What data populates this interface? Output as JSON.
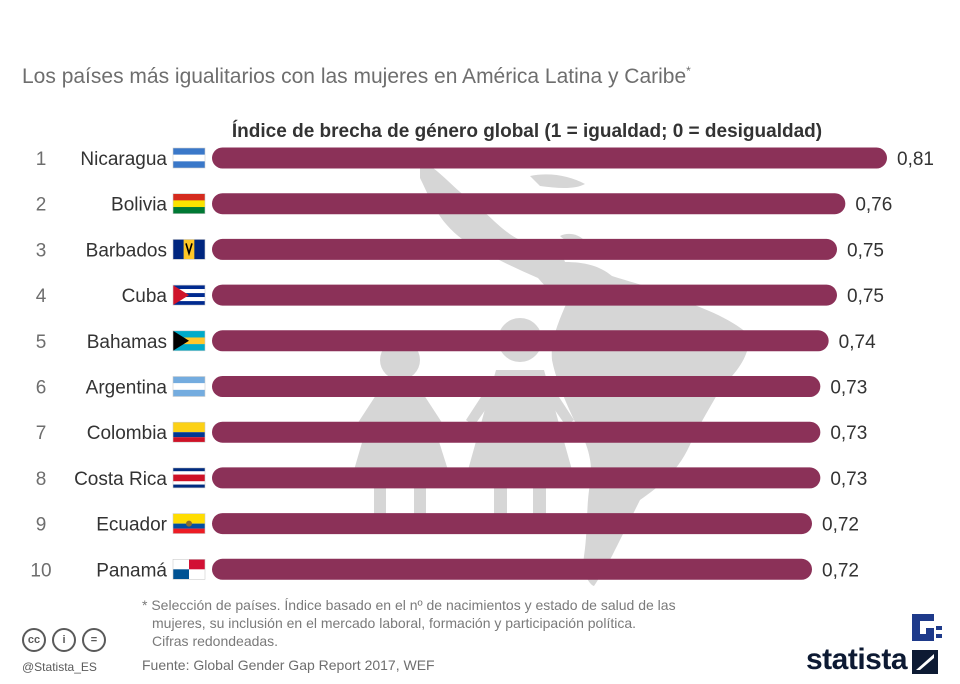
{
  "title": "Los países más igualitarios con las mujeres en América Latina y Caribe",
  "title_marker": "*",
  "chart_data": {
    "type": "bar",
    "orientation": "horizontal",
    "title": "Índice de brecha de género global (1 = igualdad; 0 = desigualdad)",
    "ranks": [
      "1",
      "2",
      "3",
      "4",
      "5",
      "6",
      "7",
      "8",
      "9",
      "10"
    ],
    "categories": [
      "Nicaragua",
      "Bolivia",
      "Barbados",
      "Cuba",
      "Bahamas",
      "Argentina",
      "Colombia",
      "Costa Rica",
      "Ecuador",
      "Panamá"
    ],
    "values": [
      0.81,
      0.76,
      0.75,
      0.75,
      0.74,
      0.73,
      0.73,
      0.73,
      0.72,
      0.72
    ],
    "value_labels": [
      "0,81",
      "0,76",
      "0,75",
      "0,75",
      "0,74",
      "0,73",
      "0,73",
      "0,73",
      "0,72",
      "0,72"
    ],
    "flags": [
      "nicaragua-flag",
      "bolivia-flag",
      "barbados-flag",
      "cuba-flag",
      "bahamas-flag",
      "argentina-flag",
      "colombia-flag",
      "costa-rica-flag",
      "ecuador-flag",
      "panama-flag"
    ],
    "xlim": [
      0,
      1
    ],
    "bar_color": "#8b3158",
    "grid": false
  },
  "footnote": {
    "line1": "* Selección de países. Índice basado en el nº de nacimientos y estado de salud de las",
    "line2": "mujeres, su inclusión en el mercado laboral, formación y participación política.",
    "line3": "Cifras redondeadas."
  },
  "source": "Fuente: Global Gender Gap Report 2017, WEF",
  "handle": "@Statista_ES",
  "cc_icons": [
    "creative-commons-icon",
    "attribution-icon",
    "no-derivatives-icon"
  ],
  "cc_glyphs": [
    "cc",
    "i",
    "="
  ],
  "brand": "statista",
  "colors": {
    "bar": "#8b3158",
    "map": "#d9d9d9",
    "brand": "#0d1a33",
    "brand_accent": "#1e3a8a"
  }
}
